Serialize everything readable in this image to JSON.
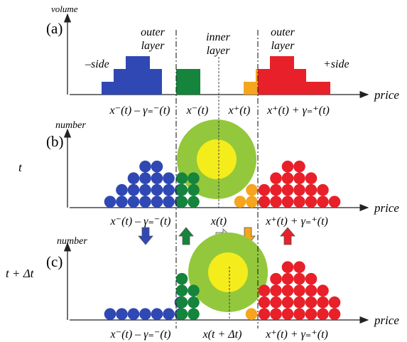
{
  "colors": {
    "blue": "#2f48b4",
    "green": "#15843c",
    "orange": "#f5a51e",
    "red": "#e8202a",
    "light_green": "#93c83c",
    "yellow": "#f5ec1c",
    "arrow_gray": "#d9d9d9",
    "axis": "#222222"
  },
  "panel_a": {
    "label": "(a)",
    "y_axis_label": "volume",
    "x_axis_label": "price",
    "outer_layer_left": [
      "outer",
      "layer"
    ],
    "inner_layer": [
      "inner",
      "layer"
    ],
    "outer_layer_right": [
      "outer",
      "layer"
    ],
    "minus_side": "–side",
    "plus_side": "+side",
    "ticks": [
      "x⁻(t) – γ₌⁻(t)",
      "x⁻(t)",
      "x⁺(t)",
      "x⁺(t) + γ₌⁺(t)"
    ],
    "bars": {
      "blue": [
        1,
        2,
        3,
        3,
        2
      ],
      "green": [
        2,
        2
      ],
      "orange": [
        1,
        2
      ],
      "red": [
        2,
        3,
        3,
        2,
        1,
        1
      ]
    }
  },
  "panel_b": {
    "label": "(b)",
    "time_label": "t",
    "y_axis_label": "number",
    "x_axis_label": "price",
    "ticks": [
      "x⁻(t) – γ₌⁻(t)",
      "x(t)",
      "x⁺(t) + γ₌⁺(t)"
    ],
    "columns": {
      "blue": [
        1,
        2,
        3,
        4,
        4,
        3,
        2
      ],
      "green": [
        3,
        3
      ],
      "orange": [
        1,
        2
      ],
      "red": [
        2,
        3,
        4,
        4,
        3,
        2,
        1
      ]
    }
  },
  "arrows": [
    "down",
    "up",
    "right",
    "down",
    "up"
  ],
  "panel_c": {
    "label": "(c)",
    "time_label": "t + Δt",
    "y_axis_label": "number",
    "x_axis_label": "price",
    "ticks": [
      "x⁻(t) – γ₌⁻(t)",
      "x(t + Δt)",
      "x⁺(t) + γ₌⁺(t)"
    ],
    "columns": {
      "blue": [
        1,
        1,
        1,
        1,
        1,
        1,
        2
      ],
      "green": [
        4,
        3
      ],
      "orange": [
        1
      ],
      "red": [
        3,
        4,
        5,
        5,
        4,
        3,
        2
      ]
    }
  }
}
